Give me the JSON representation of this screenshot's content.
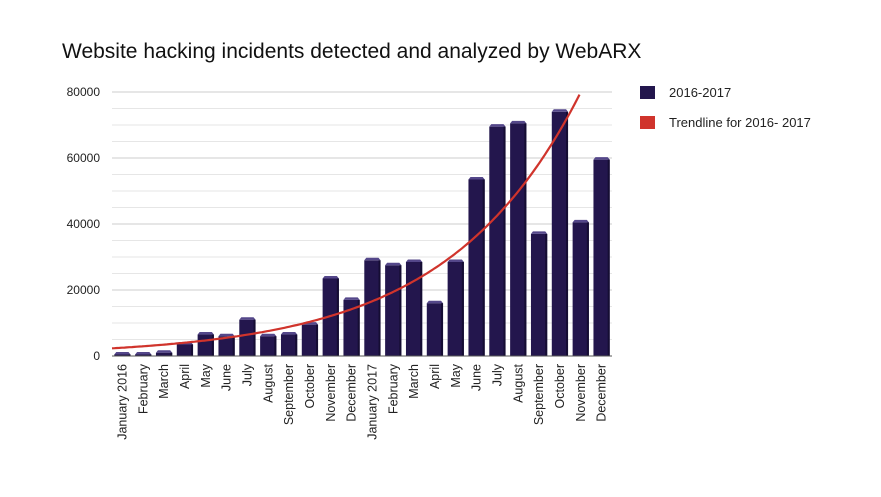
{
  "chart_data": {
    "type": "bar",
    "title": "Website hacking incidents detected and analyzed by WebARX",
    "xlabel": "",
    "ylabel": "",
    "ylim": [
      0,
      80000
    ],
    "y_ticks": [
      "0",
      "20000",
      "40000",
      "60000",
      "80000"
    ],
    "grid": true,
    "legend_position": "right",
    "categories": [
      "January 2016",
      "February",
      "March",
      "April",
      "May",
      "June",
      "July",
      "August",
      "September",
      "October",
      "November",
      "December",
      "January 2017",
      "February",
      "March",
      "April",
      "May",
      "June",
      "July",
      "August",
      "September",
      "October",
      "November",
      "December"
    ],
    "series": [
      {
        "name": "2016-2017",
        "color": "#23164d",
        "values": [
          0,
          0,
          1000,
          3500,
          6500,
          6000,
          11000,
          6000,
          6500,
          9500,
          23500,
          17000,
          29000,
          27500,
          28500,
          16000,
          28500,
          53500,
          69500,
          70500,
          37000,
          74000,
          40500,
          59500
        ]
      }
    ],
    "trendline": {
      "name": "Trendline for 2016- 2017",
      "color": "#d0342c",
      "type": "exponential"
    }
  }
}
